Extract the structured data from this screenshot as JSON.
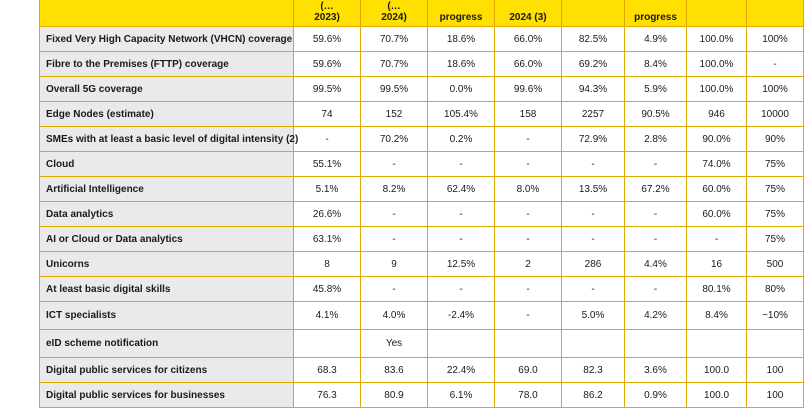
{
  "header": [
    "",
    "(…\n2023)",
    "(…\n2024)",
    "progress",
    "2024 (3)",
    "",
    "progress",
    "",
    ""
  ],
  "rows": [
    {
      "label": "Fixed Very High Capacity Network (VHCN) coverage",
      "cells": [
        "59.6%",
        "70.7%",
        "18.6%",
        "66.0%",
        "82.5%",
        "4.9%",
        "100.0%",
        "100%"
      ]
    },
    {
      "label": "Fibre to the Premises (FTTP) coverage",
      "cells": [
        "59.6%",
        "70.7%",
        "18.6%",
        "66.0%",
        "69.2%",
        "8.4%",
        "100.0%",
        "-"
      ]
    },
    {
      "label": "Overall 5G coverage",
      "cells": [
        "99.5%",
        "99.5%",
        "0.0%",
        "99.6%",
        "94.3%",
        "5.9%",
        "100.0%",
        "100%"
      ]
    },
    {
      "label": "Edge Nodes (estimate)",
      "cells": [
        "74",
        "152",
        "105.4%",
        "158",
        "2257",
        "90.5%",
        "946",
        "10000"
      ]
    },
    {
      "label": "SMEs with at least a basic level of digital intensity (2)",
      "cells": [
        "-",
        "70.2%",
        "0.2%",
        "-",
        "72.9%",
        "2.8%",
        "90.0%",
        "90%"
      ]
    },
    {
      "label": "Cloud",
      "cells": [
        "55.1%",
        "-",
        "-",
        "-",
        "-",
        "-",
        "74.0%",
        "75%"
      ]
    },
    {
      "label": "Artificial Intelligence",
      "cells": [
        "5.1%",
        "8.2%",
        "62.4%",
        "8.0%",
        "13.5%",
        "67.2%",
        "60.0%",
        "75%"
      ]
    },
    {
      "label": "Data analytics",
      "cells": [
        "26.6%",
        "-",
        "-",
        "-",
        "-",
        "-",
        "60.0%",
        "75%"
      ]
    },
    {
      "label": "AI or Cloud or Data analytics",
      "cells": [
        "63.1%",
        "-",
        "-",
        "-",
        "-",
        "-",
        "-",
        "75%"
      ]
    },
    {
      "label": "Unicorns",
      "cells": [
        "8",
        "9",
        "12.5%",
        "2",
        "286",
        "4.4%",
        "16",
        "500"
      ]
    },
    {
      "label": "At least basic digital skills",
      "cells": [
        "45.8%",
        "-",
        "-",
        "-",
        "-",
        "-",
        "80.1%",
        "80%"
      ]
    },
    {
      "label": "ICT specialists",
      "cells": [
        "4.1%",
        "4.0%",
        "-2.4%",
        "-",
        "5.0%",
        "4.2%",
        "8.4%",
        "~10%"
      ]
    },
    {
      "label": "eID scheme notification",
      "cells": [
        "",
        "Yes",
        "",
        "",
        "",
        "",
        "",
        ""
      ]
    },
    {
      "label": "Digital public services for citizens",
      "cells": [
        "68.3",
        "83.6",
        "22.4%",
        "69.0",
        "82.3",
        "3.6%",
        "100.0",
        "100"
      ]
    },
    {
      "label": "Digital public services for businesses",
      "cells": [
        "76.3",
        "80.9",
        "6.1%",
        "78.0",
        "86.2",
        "0.9%",
        "100.0",
        "100"
      ]
    }
  ]
}
